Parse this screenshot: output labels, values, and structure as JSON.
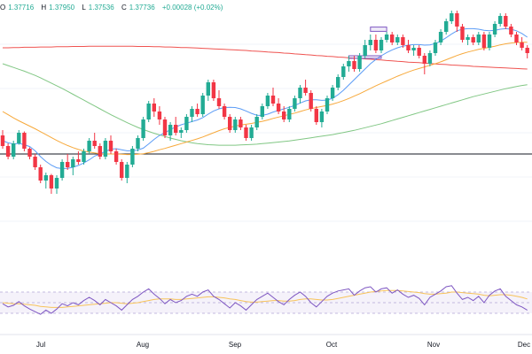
{
  "ohlc": {
    "open_label": "O",
    "open": "1.37716",
    "high_label": "H",
    "high": "1.37950",
    "low_label": "L",
    "low": "1.37536",
    "close_label": "C",
    "close": "1.37736",
    "change": "+0.00028 (+0.02%)"
  },
  "colors": {
    "up": "#22ab94",
    "down": "#f23645",
    "ma_fast": "#5b9cf6",
    "ma_mid": "#f7a93b",
    "ma_slow": "#81c784",
    "ma_long": "#ef5350",
    "rsi": "#7e57c2",
    "rsi_ma": "#f7c35a",
    "level_line": "#131722"
  },
  "chart_data": {
    "type": "candlestick",
    "x_axis": {
      "tick_labels": [
        "Jul",
        "Aug",
        "Sep",
        "Oct",
        "Nov",
        "Dec"
      ]
    },
    "y_range": [
      1.3,
      1.4
    ],
    "horizontal_level": 1.342,
    "candles": [
      [
        1.349,
        1.351,
        1.344,
        1.345
      ],
      [
        1.345,
        1.346,
        1.34,
        1.341
      ],
      [
        1.341,
        1.347,
        1.34,
        1.346
      ],
      [
        1.346,
        1.351,
        1.3455,
        1.35
      ],
      [
        1.35,
        1.3505,
        1.343,
        1.344
      ],
      [
        1.344,
        1.3445,
        1.34,
        1.341
      ],
      [
        1.341,
        1.342,
        1.336,
        1.337
      ],
      [
        1.337,
        1.338,
        1.331,
        1.332
      ],
      [
        1.332,
        1.335,
        1.329,
        1.334
      ],
      [
        1.334,
        1.3345,
        1.327,
        1.329
      ],
      [
        1.329,
        1.334,
        1.327,
        1.333
      ],
      [
        1.333,
        1.34,
        1.332,
        1.339
      ],
      [
        1.339,
        1.342,
        1.336,
        1.337
      ],
      [
        1.337,
        1.341,
        1.334,
        1.34
      ],
      [
        1.34,
        1.343,
        1.338,
        1.339
      ],
      [
        1.339,
        1.344,
        1.338,
        1.343
      ],
      [
        1.343,
        1.348,
        1.342,
        1.347
      ],
      [
        1.347,
        1.35,
        1.344,
        1.345
      ],
      [
        1.345,
        1.346,
        1.34,
        1.341
      ],
      [
        1.341,
        1.348,
        1.34,
        1.347
      ],
      [
        1.347,
        1.349,
        1.342,
        1.343
      ],
      [
        1.343,
        1.344,
        1.338,
        1.339
      ],
      [
        1.339,
        1.34,
        1.332,
        1.333
      ],
      [
        1.333,
        1.339,
        1.331,
        1.338
      ],
      [
        1.338,
        1.345,
        1.337,
        1.344
      ],
      [
        1.344,
        1.349,
        1.343,
        1.348
      ],
      [
        1.348,
        1.356,
        1.347,
        1.355
      ],
      [
        1.355,
        1.362,
        1.354,
        1.361
      ],
      [
        1.361,
        1.363,
        1.356,
        1.358
      ],
      [
        1.358,
        1.36,
        1.353,
        1.355
      ],
      [
        1.355,
        1.356,
        1.348,
        1.349
      ],
      [
        1.349,
        1.354,
        1.347,
        1.353
      ],
      [
        1.353,
        1.356,
        1.349,
        1.35
      ],
      [
        1.35,
        1.352,
        1.348,
        1.351
      ],
      [
        1.351,
        1.357,
        1.35,
        1.356
      ],
      [
        1.356,
        1.36,
        1.354,
        1.359
      ],
      [
        1.359,
        1.361,
        1.356,
        1.357
      ],
      [
        1.357,
        1.365,
        1.356,
        1.364
      ],
      [
        1.364,
        1.37,
        1.362,
        1.369
      ],
      [
        1.369,
        1.37,
        1.362,
        1.363
      ],
      [
        1.363,
        1.366,
        1.359,
        1.36
      ],
      [
        1.36,
        1.361,
        1.355,
        1.356
      ],
      [
        1.356,
        1.357,
        1.35,
        1.351
      ],
      [
        1.351,
        1.356,
        1.35,
        1.355
      ],
      [
        1.355,
        1.356,
        1.351,
        1.352
      ],
      [
        1.352,
        1.353,
        1.347,
        1.348
      ],
      [
        1.348,
        1.353,
        1.347,
        1.352
      ],
      [
        1.352,
        1.357,
        1.351,
        1.356
      ],
      [
        1.356,
        1.361,
        1.355,
        1.36
      ],
      [
        1.36,
        1.365,
        1.359,
        1.364
      ],
      [
        1.364,
        1.367,
        1.36,
        1.361
      ],
      [
        1.361,
        1.363,
        1.357,
        1.358
      ],
      [
        1.358,
        1.36,
        1.354,
        1.355
      ],
      [
        1.355,
        1.36,
        1.354,
        1.359
      ],
      [
        1.359,
        1.364,
        1.358,
        1.363
      ],
      [
        1.363,
        1.368,
        1.361,
        1.367
      ],
      [
        1.367,
        1.37,
        1.364,
        1.365
      ],
      [
        1.365,
        1.366,
        1.358,
        1.359
      ],
      [
        1.359,
        1.36,
        1.353,
        1.354
      ],
      [
        1.354,
        1.359,
        1.352,
        1.358
      ],
      [
        1.358,
        1.364,
        1.357,
        1.363
      ],
      [
        1.363,
        1.368,
        1.362,
        1.367
      ],
      [
        1.367,
        1.372,
        1.366,
        1.371
      ],
      [
        1.371,
        1.376,
        1.37,
        1.375
      ],
      [
        1.375,
        1.379,
        1.373,
        1.377
      ],
      [
        1.377,
        1.379,
        1.373,
        1.374
      ],
      [
        1.374,
        1.38,
        1.373,
        1.379
      ],
      [
        1.379,
        1.385,
        1.378,
        1.383
      ],
      [
        1.383,
        1.387,
        1.381,
        1.385
      ],
      [
        1.385,
        1.387,
        1.38,
        1.381
      ],
      [
        1.381,
        1.386,
        1.38,
        1.385
      ],
      [
        1.385,
        1.388,
        1.384,
        1.387
      ],
      [
        1.387,
        1.388,
        1.383,
        1.384
      ],
      [
        1.384,
        1.387,
        1.383,
        1.386
      ],
      [
        1.386,
        1.387,
        1.382,
        1.383
      ],
      [
        1.383,
        1.385,
        1.38,
        1.381
      ],
      [
        1.381,
        1.383,
        1.379,
        1.382
      ],
      [
        1.382,
        1.383,
        1.378,
        1.379
      ],
      [
        1.379,
        1.38,
        1.372,
        1.376
      ],
      [
        1.376,
        1.381,
        1.375,
        1.38
      ],
      [
        1.38,
        1.385,
        1.379,
        1.384
      ],
      [
        1.384,
        1.389,
        1.383,
        1.388
      ],
      [
        1.388,
        1.393,
        1.387,
        1.392
      ],
      [
        1.392,
        1.396,
        1.391,
        1.395
      ],
      [
        1.395,
        1.396,
        1.388,
        1.39
      ],
      [
        1.39,
        1.391,
        1.384,
        1.385
      ],
      [
        1.385,
        1.387,
        1.383,
        1.386
      ],
      [
        1.386,
        1.387,
        1.383,
        1.384
      ],
      [
        1.384,
        1.388,
        1.383,
        1.387
      ],
      [
        1.387,
        1.388,
        1.381,
        1.382
      ],
      [
        1.382,
        1.388,
        1.381,
        1.387
      ],
      [
        1.387,
        1.392,
        1.386,
        1.391
      ],
      [
        1.391,
        1.395,
        1.39,
        1.394
      ],
      [
        1.394,
        1.395,
        1.389,
        1.39
      ],
      [
        1.39,
        1.391,
        1.386,
        1.387
      ],
      [
        1.387,
        1.388,
        1.383,
        1.384
      ],
      [
        1.384,
        1.386,
        1.381,
        1.382
      ],
      [
        1.382,
        1.383,
        1.378,
        1.38
      ]
    ],
    "ma_fast": [
      1.347,
      1.3462,
      1.3458,
      1.346,
      1.3455,
      1.3448,
      1.3432,
      1.341,
      1.3392,
      1.3378,
      1.3368,
      1.3365,
      1.3366,
      1.337,
      1.3377,
      1.3386,
      1.3398,
      1.3412,
      1.342,
      1.343,
      1.3438,
      1.344,
      1.3436,
      1.3432,
      1.3432,
      1.3435,
      1.3442,
      1.3458,
      1.3475,
      1.349,
      1.35,
      1.3512,
      1.3522,
      1.353,
      1.3536,
      1.3542,
      1.3548,
      1.3557,
      1.357,
      1.3582,
      1.359,
      1.3595,
      1.3596,
      1.3595,
      1.359,
      1.3582,
      1.3573,
      1.3566,
      1.3565,
      1.357,
      1.3578,
      1.3584,
      1.359,
      1.3596,
      1.3603,
      1.3612,
      1.362,
      1.3624,
      1.3624,
      1.3622,
      1.3623,
      1.363,
      1.3643,
      1.366,
      1.368,
      1.37,
      1.372,
      1.374,
      1.376,
      1.3776,
      1.379,
      1.3802,
      1.3812,
      1.382,
      1.3826,
      1.383,
      1.3832,
      1.3832,
      1.383,
      1.3831,
      1.3836,
      1.3845,
      1.3858,
      1.3872,
      1.3884,
      1.389,
      1.3892,
      1.3892,
      1.389,
      1.3886,
      1.3884,
      1.3886,
      1.389,
      1.3892,
      1.389,
      1.3884,
      1.3874,
      1.386
    ],
    "ma_mid": [
      1.358,
      1.3568,
      1.3556,
      1.3545,
      1.3535,
      1.3525,
      1.3515,
      1.3504,
      1.3493,
      1.3482,
      1.3471,
      1.3461,
      1.3452,
      1.3444,
      1.3437,
      1.3431,
      1.3427,
      1.3424,
      1.3421,
      1.342,
      1.342,
      1.342,
      1.3419,
      1.3418,
      1.3418,
      1.3419,
      1.3421,
      1.3425,
      1.343,
      1.3436,
      1.3441,
      1.3447,
      1.3453,
      1.3459,
      1.3465,
      1.3471,
      1.3477,
      1.3484,
      1.3492,
      1.35,
      1.3508,
      1.3515,
      1.352,
      1.3525,
      1.3529,
      1.3532,
      1.3535,
      1.3539,
      1.3543,
      1.3548,
      1.3554,
      1.3559,
      1.3564,
      1.3569,
      1.3574,
      1.358,
      1.3586,
      1.3591,
      1.3595,
      1.3599,
      1.3603,
      1.3608,
      1.3614,
      1.3621,
      1.3629,
      1.3638,
      1.3647,
      1.3657,
      1.3667,
      1.3677,
      1.3686,
      1.3695,
      1.3704,
      1.3713,
      1.3721,
      1.3729,
      1.3736,
      1.3742,
      1.3748,
      1.3754,
      1.376,
      1.3767,
      1.3775,
      1.3783,
      1.3791,
      1.3798,
      1.3804,
      1.3809,
      1.3814,
      1.3818,
      1.3822,
      1.3826,
      1.3831,
      1.3835,
      1.3838,
      1.384,
      1.3841,
      1.3841
    ],
    "ma_slow": [
      1.376,
      1.3753,
      1.3746,
      1.3739,
      1.3732,
      1.3724,
      1.3716,
      1.3707,
      1.3697,
      1.3687,
      1.3677,
      1.3667,
      1.3656,
      1.3645,
      1.3634,
      1.3623,
      1.3612,
      1.3601,
      1.359,
      1.3579,
      1.3568,
      1.3558,
      1.3548,
      1.3538,
      1.3529,
      1.352,
      1.3512,
      1.3505,
      1.3498,
      1.3492,
      1.3486,
      1.348,
      1.3475,
      1.347,
      1.3466,
      1.3462,
      1.3459,
      1.3457,
      1.3455,
      1.3454,
      1.3453,
      1.3453,
      1.3453,
      1.3453,
      1.3454,
      1.3455,
      1.3456,
      1.3457,
      1.3459,
      1.3461,
      1.3463,
      1.3465,
      1.3467,
      1.3469,
      1.3472,
      1.3475,
      1.3478,
      1.3481,
      1.3484,
      1.3487,
      1.349,
      1.3493,
      1.3497,
      1.3501,
      1.3505,
      1.3509,
      1.3514,
      1.3519,
      1.3524,
      1.3529,
      1.3534,
      1.354,
      1.3546,
      1.3552,
      1.3558,
      1.3564,
      1.357,
      1.3576,
      1.3582,
      1.3588,
      1.3594,
      1.36,
      1.3606,
      1.3612,
      1.3618,
      1.3624,
      1.363,
      1.3636,
      1.3641,
      1.3646,
      1.3651,
      1.3656,
      1.3661,
      1.3666,
      1.367,
      1.3674,
      1.3678,
      1.3681
    ],
    "ma_long": [
      1.382,
      1.382,
      1.3821,
      1.3821,
      1.3822,
      1.3822,
      1.3822,
      1.3823,
      1.3823,
      1.3823,
      1.3824,
      1.3824,
      1.3824,
      1.3825,
      1.3825,
      1.3825,
      1.3826,
      1.3826,
      1.3826,
      1.3826,
      1.3826,
      1.3826,
      1.3826,
      1.3826,
      1.3826,
      1.3825,
      1.3825,
      1.3825,
      1.3824,
      1.3824,
      1.3823,
      1.3823,
      1.3822,
      1.3821,
      1.3821,
      1.382,
      1.3819,
      1.3818,
      1.3817,
      1.3816,
      1.3815,
      1.3814,
      1.3813,
      1.3812,
      1.3811,
      1.381,
      1.3808,
      1.3807,
      1.3806,
      1.3804,
      1.3803,
      1.3802,
      1.38,
      1.3799,
      1.3797,
      1.3796,
      1.3794,
      1.3793,
      1.3791,
      1.379,
      1.3788,
      1.3787,
      1.3785,
      1.3784,
      1.3782,
      1.3781,
      1.378,
      1.3778,
      1.3777,
      1.3775,
      1.3774,
      1.3772,
      1.3771,
      1.3769,
      1.3768,
      1.3766,
      1.3765,
      1.3764,
      1.3762,
      1.3761,
      1.3759,
      1.3758,
      1.3757,
      1.3755,
      1.3754,
      1.3753,
      1.3752,
      1.375,
      1.3749,
      1.3748,
      1.3747,
      1.3746,
      1.3745,
      1.3744,
      1.3743,
      1.3742,
      1.3741,
      1.374
    ],
    "boxes": [
      {
        "from": 64,
        "to": 70,
        "low": 1.378,
        "high": 1.379
      },
      {
        "from": 68,
        "to": 71,
        "low": 1.3882,
        "high": 1.3898
      }
    ],
    "rsi": {
      "range": [
        0,
        100
      ],
      "levels": [
        70,
        50,
        30
      ],
      "values": [
        48,
        42,
        45,
        52,
        44,
        38,
        33,
        28,
        36,
        30,
        38,
        48,
        44,
        50,
        46,
        54,
        60,
        54,
        46,
        56,
        50,
        44,
        36,
        46,
        56,
        62,
        70,
        76,
        66,
        58,
        48,
        56,
        50,
        54,
        62,
        66,
        62,
        70,
        74,
        62,
        56,
        48,
        40,
        50,
        44,
        36,
        46,
        56,
        62,
        68,
        60,
        52,
        46,
        56,
        64,
        70,
        62,
        50,
        42,
        52,
        62,
        68,
        72,
        74,
        76,
        64,
        72,
        78,
        80,
        70,
        76,
        78,
        68,
        74,
        66,
        60,
        64,
        58,
        46,
        60,
        66,
        72,
        80,
        82,
        68,
        56,
        60,
        54,
        62,
        50,
        64,
        72,
        76,
        62,
        54,
        46,
        42,
        36
      ],
      "ma": [
        50,
        49,
        48,
        48,
        47,
        46,
        45,
        43,
        42,
        41,
        41,
        41,
        42,
        43,
        44,
        45,
        46,
        47,
        48,
        49,
        50,
        50,
        49,
        48,
        49,
        50,
        52,
        54,
        56,
        57,
        57,
        57,
        56,
        56,
        57,
        58,
        59,
        60,
        61,
        61,
        60,
        59,
        57,
        56,
        54,
        52,
        51,
        51,
        52,
        53,
        54,
        54,
        53,
        53,
        54,
        56,
        57,
        57,
        56,
        55,
        55,
        56,
        58,
        60,
        62,
        64,
        66,
        68,
        70,
        71,
        72,
        73,
        73,
        73,
        72,
        71,
        70,
        69,
        67,
        66,
        66,
        67,
        68,
        70,
        70,
        69,
        68,
        67,
        66,
        64,
        63,
        64,
        65,
        65,
        64,
        62,
        60,
        57
      ]
    }
  }
}
